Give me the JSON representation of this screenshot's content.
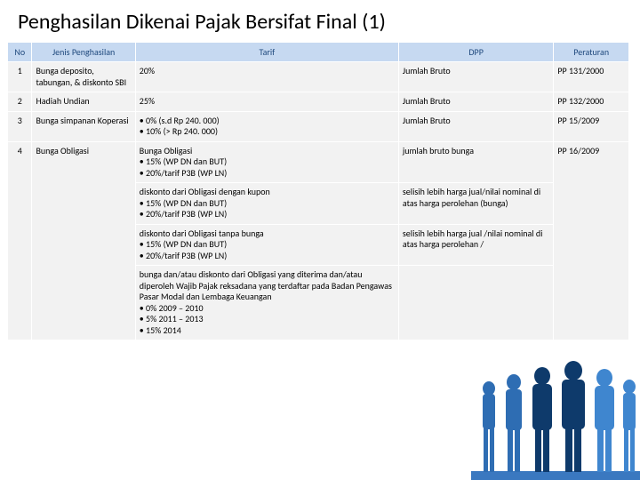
{
  "title": "Penghasilan Dikenai Pajak Bersifat Final (1)",
  "columns": [
    "No",
    "Jenis Penghasilan",
    "Tarif",
    "DPP",
    "Peraturan"
  ],
  "rows": {
    "r1": {
      "no": "1",
      "jenis": "Bunga deposito, tabungan, & diskonto SBI",
      "tarif": "20%",
      "dpp": "Jumlah Bruto",
      "per": "PP 131/2000"
    },
    "r2": {
      "no": "2",
      "jenis": "Hadiah Undian",
      "tarif": "25%",
      "dpp": "Jumlah Bruto",
      "per": "PP 132/2000"
    },
    "r3": {
      "no": "3",
      "jenis": "Bunga simpanan Koperasi",
      "tarif": "• 0% (s.d Rp 240. 000)\n• 10% (> Rp 240. 000)",
      "dpp": "Jumlah Bruto",
      "per": "PP 15/2009"
    },
    "r4": {
      "no": "4",
      "jenis": "Bunga Obligasi",
      "tarif": "Bunga Obligasi\n• 15% (WP DN dan BUT)\n• 20%/tarif P3B (WP LN)",
      "dpp": "jumlah bruto bunga",
      "per": "PP 16/2009"
    },
    "r5": {
      "tarif": "diskonto dari Obligasi dengan kupon\n• 15% (WP DN dan BUT)\n• 20%/tarif P3B (WP LN)",
      "dpp": "selisih lebih harga jual/nilai nominal di atas harga perolehan (bunga)"
    },
    "r6": {
      "tarif": "diskonto dari Obligasi tanpa bunga\n• 15% (WP DN dan BUT)\n• 20%/tarif P3B (WP LN)",
      "dpp": "selisih lebih harga jual /nilai nominal di atas harga perolehan /"
    },
    "r7": {
      "tarif": "bunga dan/atau diskonto dari Obligasi yang diterima dan/atau diperoleh Wajib Pajak reksadana yang terdaftar pada Badan Pengawas Pasar Modal dan Lembaga Keuangan\n• 0%   2009 – 2010\n• 5%   2011 – 2013\n• 15% 2014"
    }
  },
  "colors": {
    "header_bg": "#c6d9f1",
    "header_text": "#1f497d",
    "cell_bg": "#f2f2f2"
  }
}
